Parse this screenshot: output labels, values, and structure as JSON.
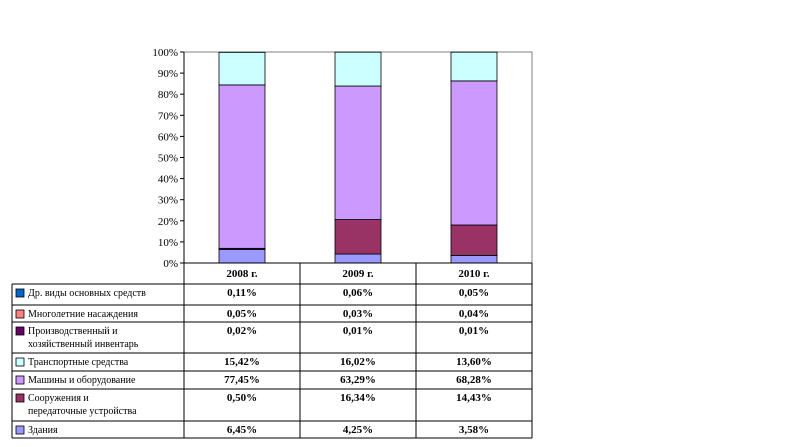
{
  "chart_data": {
    "type": "bar",
    "stacked": true,
    "percent_stacked": true,
    "categories": [
      "2008 г.",
      "2009 г.",
      "2010 г."
    ],
    "y_ticks": [
      "0%",
      "10%",
      "20%",
      "30%",
      "40%",
      "50%",
      "60%",
      "70%",
      "80%",
      "90%",
      "100%"
    ],
    "ylim": [
      0,
      100
    ],
    "grid": false,
    "legend": "bottom-data-table",
    "series": [
      {
        "name": "Здания",
        "color": "#9999ff",
        "values": [
          6.45,
          4.25,
          3.58
        ],
        "labels": [
          "6,45%",
          "4,25%",
          "3,58%"
        ]
      },
      {
        "name": "Сооружения и передаточные устройства",
        "color": "#993366",
        "values": [
          0.5,
          16.34,
          14.43
        ],
        "labels": [
          "0,50%",
          "16,34%",
          "14,43%"
        ]
      },
      {
        "name": "Машины и оборудование",
        "color": "#cc99ff",
        "values": [
          77.45,
          63.29,
          68.28
        ],
        "labels": [
          "77,45%",
          "63,29%",
          "68,28%"
        ]
      },
      {
        "name": "Транспортные средства",
        "color": "#ccffff",
        "values": [
          15.42,
          16.02,
          13.6
        ],
        "labels": [
          "15,42%",
          "16,02%",
          "13,60%"
        ]
      },
      {
        "name": "Производственный и хозяйственный инвентарь",
        "color": "#660066",
        "values": [
          0.02,
          0.01,
          0.01
        ],
        "labels": [
          "0,02%",
          "0,01%",
          "0,01%"
        ]
      },
      {
        "name": "Многолетние насаждения",
        "color": "#ff8080",
        "values": [
          0.05,
          0.03,
          0.04
        ],
        "labels": [
          "0,05%",
          "0,03%",
          "0,04%"
        ]
      },
      {
        "name": "Др. виды основных средств",
        "color": "#0066cc",
        "values": [
          0.11,
          0.06,
          0.05
        ],
        "labels": [
          "0,11%",
          "0,06%",
          "0,05%"
        ]
      }
    ]
  }
}
